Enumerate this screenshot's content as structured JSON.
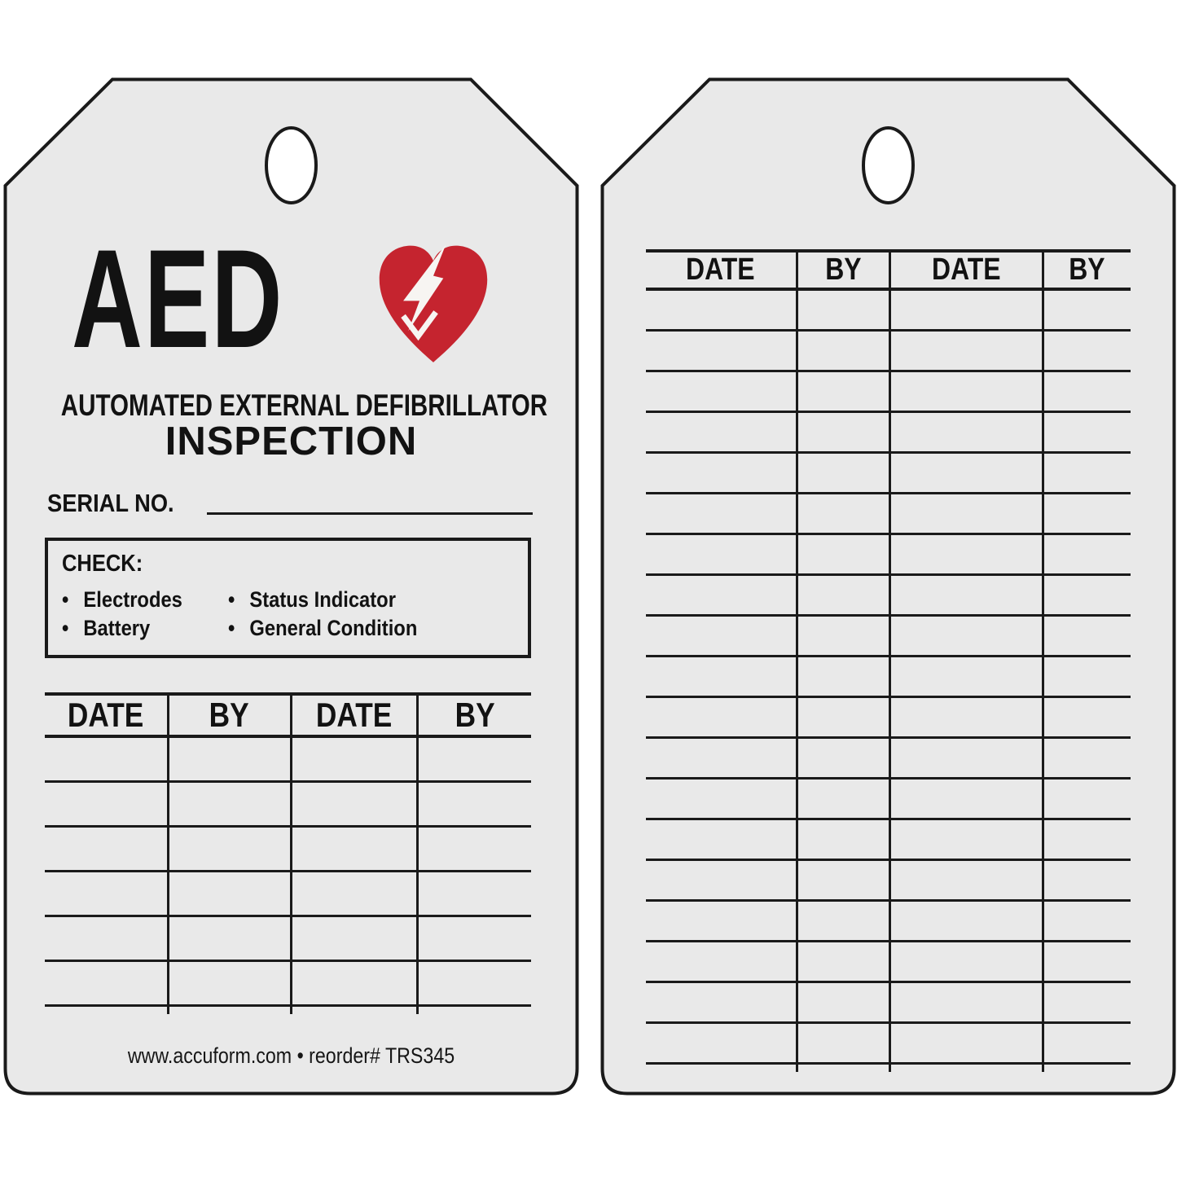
{
  "front_tag": {
    "title": "AED",
    "subtitle_line1": "AUTOMATED EXTERNAL DEFIBRILLATOR",
    "subtitle_line2": "INSPECTION",
    "serial_label": "SERIAL NO.",
    "check_box": {
      "heading": "CHECK:",
      "bullet": "•",
      "items_left": [
        "Electrodes",
        "Battery"
      ],
      "items_right": [
        "Status Indicator",
        "General Condition"
      ]
    },
    "log_table": {
      "headers": [
        "DATE",
        "BY",
        "DATE",
        "BY"
      ],
      "empty_rows": 6
    },
    "footer": "www.accuform.com • reorder# TRS345"
  },
  "back_tag": {
    "log_table": {
      "headers": [
        "DATE",
        "BY",
        "DATE",
        "BY"
      ],
      "empty_rows": 19
    }
  },
  "icons": {
    "heart": "aed-heart-lightning-icon",
    "hole": "hang-hole"
  },
  "colors": {
    "heart_red": "#c5242f",
    "bolt_white": "#f7f5f2",
    "tag_fill": "#e9e9e9",
    "line": "#1a1a1a",
    "background": "#ffffff"
  }
}
